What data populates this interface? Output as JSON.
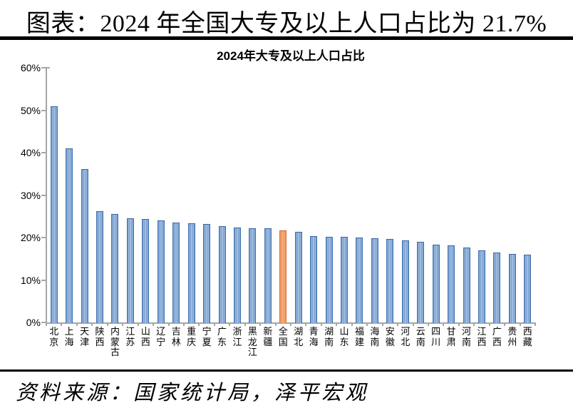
{
  "page": {
    "title": "图表：2024 年全国大专及以上人口占比为 21.7%",
    "source_note": "资料来源：国家统计局，泽平宏观"
  },
  "chart_data": {
    "type": "bar",
    "title": "2024年大专及以上人口占比",
    "categories": [
      "北京",
      "上海",
      "天津",
      "陕西",
      "内蒙古",
      "江苏",
      "山西",
      "辽宁",
      "吉林",
      "重庆",
      "宁夏",
      "广东",
      "浙江",
      "黑龙江",
      "新疆",
      "全国",
      "湖北",
      "青海",
      "湖南",
      "山东",
      "福建",
      "海南",
      "安徽",
      "河北",
      "云南",
      "四川",
      "甘肃",
      "河南",
      "江西",
      "广西",
      "贵州",
      "西藏"
    ],
    "values": [
      51.0,
      41.0,
      36.2,
      26.2,
      25.6,
      24.5,
      24.4,
      24.0,
      23.5,
      23.3,
      23.2,
      22.7,
      22.4,
      22.2,
      22.2,
      21.7,
      21.3,
      20.3,
      20.2,
      20.2,
      20.0,
      19.8,
      19.7,
      19.4,
      19.0,
      18.3,
      18.1,
      17.7,
      16.9,
      16.5,
      16.2,
      16.0
    ],
    "unit": "%",
    "xlabel": "",
    "ylabel": "",
    "ylim": [
      0,
      60
    ],
    "ytick_labels": [
      "0%",
      "10%",
      "20%",
      "30%",
      "40%",
      "50%",
      "60%"
    ],
    "grid": false,
    "legend": false,
    "x_label_orientation": "vertical-stacked",
    "highlight_category": "全国",
    "colors": {
      "bar": "#4F81BD",
      "bar_highlight": "#ED9150",
      "axis": "#A6A6A6",
      "text": "#000000",
      "divider": "#000000"
    }
  }
}
